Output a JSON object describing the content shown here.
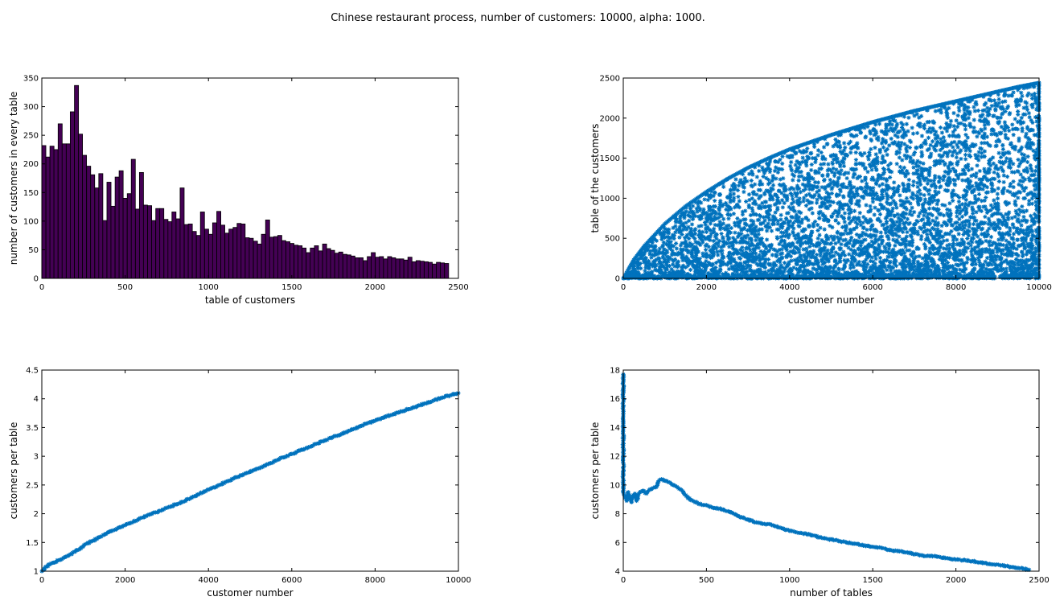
{
  "figure": {
    "title": "Chinese restaurant process, number of customers: 10000, alpha: 1000."
  },
  "chart_data": [
    {
      "type": "bar",
      "xlabel": "table of customers",
      "ylabel": "number of customers in every table",
      "xlim": [
        0,
        2500
      ],
      "ylim": [
        0,
        350
      ],
      "xticks": [
        "0",
        "500",
        "1000",
        "1500",
        "2000",
        "2500"
      ],
      "yticks": [
        "0",
        "50",
        "100",
        "150",
        "200",
        "250",
        "300",
        "350"
      ],
      "bar_color": "#440154",
      "bin_width": 24.4,
      "x": [
        12,
        37,
        61,
        85,
        110,
        134,
        159,
        183,
        208,
        232,
        256,
        281,
        305,
        330,
        354,
        378,
        403,
        427,
        452,
        476,
        500,
        525,
        549,
        574,
        598,
        622,
        647,
        671,
        696,
        720,
        745,
        769,
        793,
        818,
        842,
        867,
        891,
        915,
        940,
        964,
        989,
        1013,
        1037,
        1062,
        1086,
        1111,
        1135,
        1160,
        1184,
        1208,
        1233,
        1257,
        1282,
        1306,
        1330,
        1355,
        1379,
        1404,
        1428,
        1452,
        1477,
        1501,
        1526,
        1550,
        1574,
        1599,
        1623,
        1648,
        1672,
        1697,
        1721,
        1745,
        1770,
        1794,
        1819,
        1843,
        1867,
        1892,
        1916,
        1941,
        1965,
        1989,
        2014,
        2038,
        2063,
        2087,
        2111,
        2136,
        2160,
        2185,
        2209,
        2233,
        2258,
        2282,
        2307,
        2331,
        2356,
        2380,
        2404,
        2429
      ],
      "values": [
        232,
        212,
        231,
        225,
        270,
        235,
        235,
        291,
        337,
        252,
        215,
        196,
        181,
        158,
        183,
        101,
        168,
        126,
        177,
        188,
        140,
        148,
        208,
        121,
        185,
        128,
        127,
        101,
        122,
        122,
        103,
        99,
        116,
        104,
        158,
        94,
        95,
        82,
        75,
        116,
        86,
        77,
        97,
        117,
        93,
        79,
        86,
        89,
        96,
        95,
        71,
        70,
        65,
        60,
        77,
        102,
        72,
        73,
        75,
        66,
        64,
        61,
        58,
        57,
        53,
        45,
        53,
        57,
        48,
        60,
        52,
        49,
        44,
        46,
        42,
        41,
        39,
        36,
        36,
        31,
        38,
        45,
        37,
        38,
        34,
        38,
        36,
        34,
        34,
        32,
        37,
        29,
        31,
        30,
        29,
        28,
        25,
        28,
        27,
        26
      ]
    },
    {
      "type": "scatter",
      "xlabel": "customer number",
      "ylabel": "table of the customers",
      "xlim": [
        0,
        10000
      ],
      "ylim": [
        0,
        2500
      ],
      "xticks": [
        "0",
        "2000",
        "4000",
        "6000",
        "8000",
        "10000"
      ],
      "yticks": [
        "0",
        "500",
        "1000",
        "1500",
        "2000",
        "2500"
      ],
      "marker": "asterisk",
      "color": "#0072BD",
      "frontier": {
        "description": "new tables",
        "x": [
          0,
          250,
          500,
          1000,
          1500,
          2000,
          2500,
          3000,
          3500,
          4000,
          4500,
          5000,
          5500,
          6000,
          6500,
          7000,
          7500,
          8000,
          8500,
          9000,
          9500,
          10000
        ],
        "y": [
          0,
          230,
          400,
          680,
          900,
          1080,
          1240,
          1380,
          1500,
          1610,
          1700,
          1790,
          1870,
          1950,
          2020,
          2090,
          2150,
          2210,
          2270,
          2330,
          2390,
          2440
        ]
      },
      "last_point": {
        "x": 10000,
        "y": 2440
      }
    },
    {
      "type": "scatter",
      "xlabel": "customer number",
      "ylabel": "customers per table",
      "xlim": [
        0,
        10000
      ],
      "ylim": [
        1,
        4.5
      ],
      "xticks": [
        "0",
        "2000",
        "4000",
        "6000",
        "8000",
        "10000"
      ],
      "yticks": [
        "1",
        "1.5",
        "2",
        "2.5",
        "3",
        "3.5",
        "4",
        "4.5"
      ],
      "marker": "asterisk",
      "color": "#0072BD",
      "x": [
        0,
        100,
        200,
        400,
        600,
        800,
        1000,
        1200,
        1400,
        1600,
        1800,
        2000,
        2200,
        2400,
        2600,
        2800,
        3000,
        3200,
        3400,
        3600,
        3800,
        4000,
        4200,
        4400,
        4600,
        4800,
        5000,
        5200,
        5400,
        5600,
        5800,
        6000,
        6200,
        6400,
        6600,
        6800,
        7000,
        7200,
        7400,
        7600,
        7800,
        8000,
        8200,
        8400,
        8600,
        8800,
        9000,
        9200,
        9400,
        9600,
        9800,
        10000
      ],
      "y": [
        1.0,
        1.08,
        1.12,
        1.19,
        1.26,
        1.34,
        1.44,
        1.52,
        1.6,
        1.68,
        1.74,
        1.8,
        1.86,
        1.93,
        1.99,
        2.04,
        2.1,
        2.16,
        2.21,
        2.28,
        2.35,
        2.42,
        2.48,
        2.55,
        2.61,
        2.67,
        2.73,
        2.79,
        2.86,
        2.92,
        2.98,
        3.04,
        3.1,
        3.16,
        3.22,
        3.28,
        3.34,
        3.39,
        3.45,
        3.51,
        3.57,
        3.62,
        3.67,
        3.72,
        3.77,
        3.82,
        3.87,
        3.92,
        3.97,
        4.02,
        4.06,
        4.1
      ]
    },
    {
      "type": "scatter",
      "xlabel": "number of tables",
      "ylabel": "customers per table",
      "xlim": [
        0,
        2500
      ],
      "ylim": [
        4,
        18
      ],
      "xticks": [
        "0",
        "500",
        "1000",
        "1500",
        "2000",
        "2500"
      ],
      "yticks": [
        "4",
        "6",
        "8",
        "10",
        "12",
        "14",
        "16",
        "18"
      ],
      "marker": "asterisk",
      "color": "#0072BD",
      "x": [
        0,
        0,
        0,
        0,
        0,
        0,
        0,
        0,
        0,
        5,
        10,
        20,
        30,
        40,
        50,
        60,
        70,
        80,
        90,
        100,
        120,
        140,
        160,
        180,
        200,
        215,
        230,
        250,
        270,
        300,
        330,
        360,
        400,
        450,
        500,
        550,
        600,
        650,
        700,
        750,
        800,
        850,
        900,
        950,
        1000,
        1100,
        1200,
        1300,
        1400,
        1500,
        1600,
        1700,
        1800,
        1900,
        2000,
        2100,
        2200,
        2300,
        2400,
        2440
      ],
      "y": [
        17.7,
        16.0,
        15.0,
        14.8,
        13.1,
        12.1,
        11.5,
        10.4,
        9.6,
        9.3,
        9.1,
        8.9,
        9.5,
        9.0,
        8.8,
        9.3,
        9.4,
        8.9,
        9.3,
        9.5,
        9.6,
        9.4,
        9.7,
        9.8,
        9.9,
        10.3,
        10.4,
        10.3,
        10.2,
        10.0,
        9.8,
        9.5,
        9.0,
        8.7,
        8.6,
        8.4,
        8.3,
        8.1,
        7.8,
        7.6,
        7.4,
        7.3,
        7.2,
        7.0,
        6.8,
        6.6,
        6.3,
        6.1,
        5.9,
        5.7,
        5.5,
        5.3,
        5.1,
        5.0,
        4.8,
        4.7,
        4.5,
        4.35,
        4.2,
        4.1
      ]
    }
  ]
}
